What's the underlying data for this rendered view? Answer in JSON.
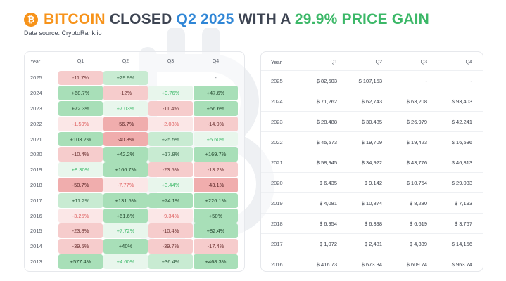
{
  "title": {
    "w1": "BITCOIN",
    "w2": "CLOSED",
    "w3": "Q2 2025",
    "w4": "WITH A",
    "w5": "29.9% PRICE GAIN"
  },
  "source": "Data source: CryptoRank.io",
  "colors": {
    "orange": "#f7931a",
    "blue": "#2f86d6",
    "green": "#3cb868",
    "dark": "#3d4452"
  },
  "icons": [
    "bitcoin-logo-icon"
  ],
  "chart_data": [
    {
      "type": "heatmap",
      "columns": [
        "Year",
        "Q1",
        "Q2",
        "Q3",
        "Q4"
      ],
      "rows": [
        {
          "year": "2025",
          "values": [
            "-11.7%",
            "+29.9%",
            "",
            "-"
          ]
        },
        {
          "year": "2024",
          "values": [
            "+68.7%",
            "-12%",
            "+0.76%",
            "+47.6%"
          ]
        },
        {
          "year": "2023",
          "values": [
            "+72.3%",
            "+7.03%",
            "-11.4%",
            "+56.6%"
          ]
        },
        {
          "year": "2022",
          "values": [
            "-1.59%",
            "-56.7%",
            "-2.08%",
            "-14.9%"
          ]
        },
        {
          "year": "2021",
          "values": [
            "+103.2%",
            "-40.8%",
            "+25.5%",
            "+5.60%"
          ]
        },
        {
          "year": "2020",
          "values": [
            "-10.4%",
            "+42.2%",
            "+17.8%",
            "+169.7%"
          ]
        },
        {
          "year": "2019",
          "values": [
            "+8.30%",
            "+166.7%",
            "-23.5%",
            "-13.2%"
          ]
        },
        {
          "year": "2018",
          "values": [
            "-50.7%",
            "-7.77%",
            "+3.44%",
            "-43.1%"
          ]
        },
        {
          "year": "2017",
          "values": [
            "+11.2%",
            "+131.5%",
            "+74.1%",
            "+226.1%"
          ]
        },
        {
          "year": "2016",
          "values": [
            "-3.25%",
            "+61.6%",
            "-9.34%",
            "+58%"
          ]
        },
        {
          "year": "2015",
          "values": [
            "-23.8%",
            "+7.72%",
            "-10.4%",
            "+82.4%"
          ]
        },
        {
          "year": "2014",
          "values": [
            "-39.5%",
            "+40%",
            "-39.7%",
            "-17.4%"
          ]
        },
        {
          "year": "2013",
          "values": [
            "+577.4%",
            "+4.60%",
            "+36.4%",
            "+468.3%"
          ]
        }
      ]
    },
    {
      "type": "table",
      "columns": [
        "Year",
        "Q1",
        "Q2",
        "Q3",
        "Q4"
      ],
      "rows": [
        {
          "year": "2025",
          "values": [
            "$ 82,503",
            "$ 107,153",
            "-",
            "-"
          ]
        },
        {
          "year": "2024",
          "values": [
            "$ 71,262",
            "$ 62,743",
            "$ 63,208",
            "$ 93,403"
          ]
        },
        {
          "year": "2023",
          "values": [
            "$ 28,488",
            "$ 30,485",
            "$ 26,979",
            "$ 42,241"
          ]
        },
        {
          "year": "2022",
          "values": [
            "$ 45,573",
            "$ 19,709",
            "$ 19,423",
            "$ 16,536"
          ]
        },
        {
          "year": "2021",
          "values": [
            "$ 58,945",
            "$ 34,922",
            "$ 43,776",
            "$ 46,313"
          ]
        },
        {
          "year": "2020",
          "values": [
            "$ 6,435",
            "$ 9,142",
            "$ 10,754",
            "$ 29,033"
          ]
        },
        {
          "year": "2019",
          "values": [
            "$ 4,081",
            "$ 10,874",
            "$ 8,280",
            "$ 7,193"
          ]
        },
        {
          "year": "2018",
          "values": [
            "$ 6,954",
            "$ 6,398",
            "$ 6,619",
            "$ 3,767"
          ]
        },
        {
          "year": "2017",
          "values": [
            "$ 1,072",
            "$ 2,481",
            "$ 4,339",
            "$ 14,156"
          ]
        },
        {
          "year": "2016",
          "values": [
            "$ 416.73",
            "$ 673.34",
            "$ 609.74",
            "$ 963.74"
          ]
        }
      ]
    }
  ]
}
